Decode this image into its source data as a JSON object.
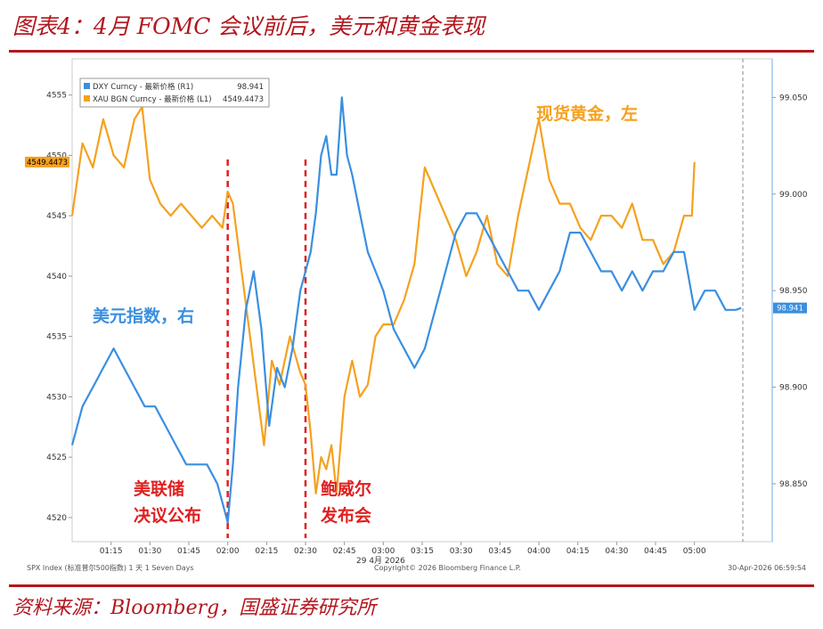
{
  "figure": {
    "title": "图表4：4月 FOMC 会议前后，美元和黄金表现",
    "source": "资料来源：Bloomberg，国盛证券研究所"
  },
  "chart_data": {
    "type": "line",
    "legend": {
      "placement": "top-left",
      "entries": [
        {
          "label": "DXY Curncy - 最新价格 (R1)",
          "value": "98.941",
          "color": "#3a8fe0"
        },
        {
          "label": "XAU BGN Curncy - 最新价格 (L1)",
          "value": "4549.4473",
          "color": "#f5a11e"
        }
      ]
    },
    "x_ticks": [
      "01:15",
      "01:30",
      "01:45",
      "02:00",
      "02:15",
      "02:30",
      "02:45",
      "03:00",
      "03:15",
      "03:30",
      "03:45",
      "04:00",
      "04:15",
      "04:30",
      "04:45",
      "05:00"
    ],
    "x_date_label": "29 4月 2026",
    "left_axis": {
      "ylim": [
        4518,
        4558
      ],
      "ticks": [
        "4520",
        "4525",
        "4530",
        "4535",
        "4540",
        "4545",
        "4550",
        "4555"
      ],
      "last_label": "4549.4473"
    },
    "right_axis": {
      "ylim": [
        98.82,
        99.07
      ],
      "ticks": [
        "98.850",
        "98.900",
        "98.950",
        "99.000",
        "99.050"
      ],
      "last_label": "98.941"
    },
    "annotations": {
      "gold": "现货黄金，左",
      "dxy": "美元指数，右",
      "fed_line1": "美联储",
      "fed_line2": "决议公布",
      "powell_line1": "鲍威尔",
      "powell_line2": "发布会"
    },
    "event_times": [
      "02:00",
      "02:30"
    ],
    "series": [
      {
        "name": "XAU BGN Curncy",
        "axis": "left",
        "color": "#f5a11e",
        "t": [
          "01:00",
          "01:04",
          "01:08",
          "01:12",
          "01:16",
          "01:20",
          "01:24",
          "01:27",
          "01:30",
          "01:34",
          "01:38",
          "01:42",
          "01:46",
          "01:50",
          "01:54",
          "01:58",
          "02:00",
          "02:02",
          "02:05",
          "02:08",
          "02:11",
          "02:14",
          "02:17",
          "02:20",
          "02:24",
          "02:28",
          "02:30",
          "02:32",
          "02:34",
          "02:36",
          "02:38",
          "02:40",
          "02:42",
          "02:45",
          "02:48",
          "02:51",
          "02:54",
          "02:57",
          "03:00",
          "03:04",
          "03:08",
          "03:12",
          "03:16",
          "03:20",
          "03:24",
          "03:28",
          "03:32",
          "03:36",
          "03:40",
          "03:44",
          "03:48",
          "03:52",
          "03:56",
          "04:00",
          "04:04",
          "04:08",
          "04:12",
          "04:16",
          "04:20",
          "04:24",
          "04:28",
          "04:32",
          "04:36",
          "04:40",
          "04:44",
          "04:48",
          "04:52",
          "04:56",
          "04:59",
          "05:00"
        ],
        "values": [
          4545,
          4551,
          4549,
          4553,
          4550,
          4549,
          4553,
          4554,
          4548,
          4546,
          4545,
          4546,
          4545,
          4544,
          4545,
          4544,
          4547,
          4546,
          4541,
          4536,
          4531,
          4526,
          4533,
          4531,
          4535,
          4532,
          4531,
          4527,
          4522,
          4525,
          4524,
          4526,
          4522,
          4530,
          4533,
          4530,
          4531,
          4535,
          4536,
          4536,
          4538,
          4541,
          4549,
          4547,
          4545,
          4543,
          4540,
          4542,
          4545,
          4541,
          4540,
          4545,
          4549,
          4553,
          4548,
          4546,
          4546,
          4544,
          4543,
          4545,
          4545,
          4544,
          4546,
          4543,
          4543,
          4541,
          4542,
          4545,
          4545,
          4549.4473
        ]
      },
      {
        "name": "DXY Curncy",
        "axis": "right",
        "color": "#3a8fe0",
        "t": [
          "01:00",
          "01:04",
          "01:08",
          "01:12",
          "01:16",
          "01:20",
          "01:24",
          "01:28",
          "01:32",
          "01:36",
          "01:40",
          "01:44",
          "01:48",
          "01:52",
          "01:56",
          "02:00",
          "02:02",
          "02:04",
          "02:07",
          "02:10",
          "02:13",
          "02:16",
          "02:19",
          "02:22",
          "02:25",
          "02:28",
          "02:30",
          "02:32",
          "02:34",
          "02:36",
          "02:38",
          "02:40",
          "02:42",
          "02:44",
          "02:46",
          "02:48",
          "02:51",
          "02:54",
          "02:57",
          "03:00",
          "03:04",
          "03:08",
          "03:12",
          "03:16",
          "03:20",
          "03:24",
          "03:28",
          "03:32",
          "03:36",
          "03:40",
          "03:44",
          "03:48",
          "03:52",
          "03:56",
          "04:00",
          "04:04",
          "04:08",
          "04:12",
          "04:16",
          "04:20",
          "04:24",
          "04:28",
          "04:32",
          "04:36",
          "04:40",
          "04:44",
          "04:48",
          "04:52",
          "04:56",
          "05:00",
          "05:04",
          "05:08",
          "05:12",
          "05:16",
          "05:18"
        ],
        "values": [
          98.87,
          98.89,
          98.9,
          98.91,
          98.92,
          98.91,
          98.9,
          98.89,
          98.89,
          98.88,
          98.87,
          98.86,
          98.86,
          98.86,
          98.85,
          98.83,
          98.86,
          98.9,
          98.94,
          98.96,
          98.93,
          98.88,
          98.91,
          98.9,
          98.92,
          98.95,
          98.96,
          98.97,
          98.99,
          99.02,
          99.03,
          99.01,
          99.01,
          99.05,
          99.02,
          99.01,
          98.99,
          98.97,
          98.96,
          98.95,
          98.93,
          98.92,
          98.91,
          98.92,
          98.94,
          98.96,
          98.98,
          98.99,
          98.99,
          98.98,
          98.97,
          98.96,
          98.95,
          98.95,
          98.94,
          98.95,
          98.96,
          98.98,
          98.98,
          98.97,
          98.96,
          98.96,
          98.95,
          98.96,
          98.95,
          98.96,
          98.96,
          98.97,
          98.97,
          98.94,
          98.95,
          98.95,
          98.94,
          98.94,
          98.941
        ]
      }
    ],
    "footer": {
      "left": "SPX Index (标准普尔500指数) 1 天 1 Seven Days",
      "center": "Copyright© 2026 Bloomberg Finance L.P.",
      "right": "30-Apr-2026 06:59:54"
    }
  }
}
